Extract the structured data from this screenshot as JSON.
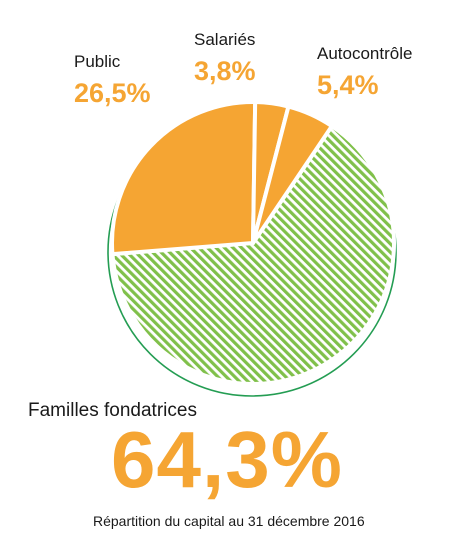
{
  "colors": {
    "orange": "#f5a533",
    "green": "#80c04a",
    "ring": "#249d53",
    "text": "#1a1a1a"
  },
  "chart_data": {
    "type": "pie",
    "title": "",
    "caption": "Répartition du capital au 31 décembre 2016",
    "slices": [
      {
        "label": "Familles fondatrices",
        "value": 64.3,
        "display": "64,3%",
        "style": "hatched-green"
      },
      {
        "label": "Public",
        "value": 26.5,
        "display": "26,5%",
        "style": "solid-orange"
      },
      {
        "label": "Salariés",
        "value": 3.8,
        "display": "3,8%",
        "style": "solid-orange"
      },
      {
        "label": "Autocontrôle",
        "value": 5.4,
        "display": "5,4%",
        "style": "solid-orange"
      }
    ]
  }
}
